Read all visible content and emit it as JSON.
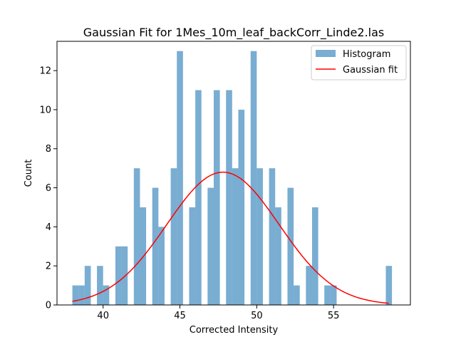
{
  "chart_data": {
    "type": "bar",
    "title": "Gaussian Fit for 1Mes_10m_leaf_backCorr_Linde2.las",
    "xlabel": "Corrected Intensity",
    "ylabel": "Count",
    "xlim": [
      37.0,
      60.0
    ],
    "ylim": [
      0,
      13.5
    ],
    "xticks": [
      40,
      45,
      50,
      55
    ],
    "yticks": [
      0,
      2,
      4,
      6,
      8,
      10,
      12
    ],
    "bin_width": 0.4,
    "colors": {
      "histogram": "#1f77b4",
      "histogram_alpha": 0.6,
      "fit": "#ff0000"
    },
    "series": [
      {
        "name": "Histogram",
        "kind": "histogram",
        "bins": [
          {
            "x": 38.0,
            "count": 1
          },
          {
            "x": 38.4,
            "count": 1
          },
          {
            "x": 38.8,
            "count": 2
          },
          {
            "x": 39.6,
            "count": 2
          },
          {
            "x": 40.0,
            "count": 1
          },
          {
            "x": 40.8,
            "count": 3
          },
          {
            "x": 41.2,
            "count": 3
          },
          {
            "x": 42.0,
            "count": 7
          },
          {
            "x": 42.4,
            "count": 5
          },
          {
            "x": 43.2,
            "count": 6
          },
          {
            "x": 43.6,
            "count": 4
          },
          {
            "x": 44.4,
            "count": 7
          },
          {
            "x": 44.8,
            "count": 13
          },
          {
            "x": 45.6,
            "count": 5
          },
          {
            "x": 46.0,
            "count": 11
          },
          {
            "x": 46.8,
            "count": 6
          },
          {
            "x": 47.2,
            "count": 11
          },
          {
            "x": 48.0,
            "count": 11
          },
          {
            "x": 48.4,
            "count": 7
          },
          {
            "x": 48.8,
            "count": 10
          },
          {
            "x": 49.6,
            "count": 13
          },
          {
            "x": 50.0,
            "count": 7
          },
          {
            "x": 50.8,
            "count": 7
          },
          {
            "x": 51.2,
            "count": 5
          },
          {
            "x": 52.0,
            "count": 6
          },
          {
            "x": 52.4,
            "count": 1
          },
          {
            "x": 53.2,
            "count": 2
          },
          {
            "x": 53.6,
            "count": 5
          },
          {
            "x": 54.4,
            "count": 1
          },
          {
            "x": 54.8,
            "count": 1
          },
          {
            "x": 58.4,
            "count": 2
          }
        ]
      },
      {
        "name": "Gaussian fit",
        "kind": "line",
        "amplitude": 6.8,
        "mean": 47.8,
        "sigma": 3.65,
        "x_range": [
          38.0,
          58.6
        ]
      }
    ],
    "legend": {
      "position": "top-right",
      "entries": [
        "Histogram",
        "Gaussian fit"
      ]
    }
  }
}
